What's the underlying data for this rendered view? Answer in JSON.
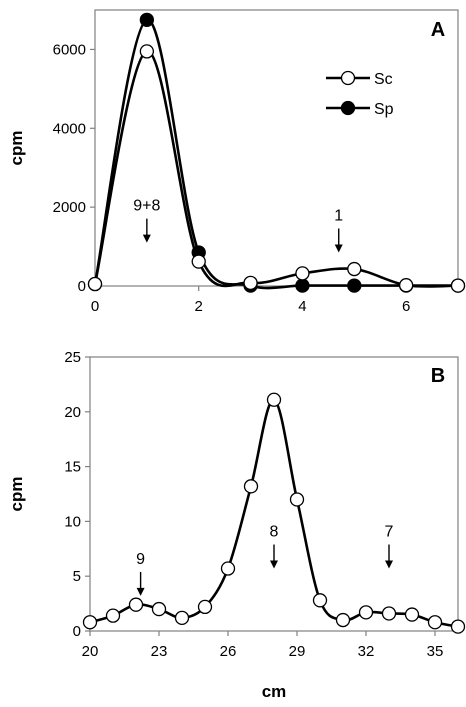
{
  "chart_data": [
    {
      "type": "line",
      "panel_label": "A",
      "ylabel": "cpm",
      "xlabel": "",
      "xlim": [
        0,
        7
      ],
      "ylim": [
        0,
        7000
      ],
      "x_ticks": [
        "0",
        "2",
        "4",
        "6"
      ],
      "y_ticks": [
        "0",
        "2000",
        "4000",
        "6000"
      ],
      "x": [
        0,
        1,
        2,
        3,
        4,
        5,
        6,
        7
      ],
      "series": [
        {
          "name": "Sc",
          "marker": "open-circle",
          "values": [
            50,
            5950,
            620,
            80,
            320,
            430,
            20,
            10
          ]
        },
        {
          "name": "Sp",
          "marker": "filled-circle",
          "values": [
            50,
            6750,
            850,
            10,
            10,
            10,
            10,
            10
          ]
        }
      ],
      "legend_position": "top-right",
      "annotations": [
        {
          "text": "9+8",
          "x": 1,
          "arrow_tip_y": 1100
        },
        {
          "text": "1",
          "x": 4.7,
          "arrow_tip_y": 850
        }
      ]
    },
    {
      "type": "line",
      "panel_label": "B",
      "ylabel": "cpm",
      "xlabel": "cm",
      "xlim": [
        20,
        36
      ],
      "ylim": [
        0,
        25
      ],
      "x_ticks": [
        "20",
        "23",
        "26",
        "29",
        "32",
        "35"
      ],
      "y_ticks": [
        "0",
        "5",
        "10",
        "15",
        "20",
        "25"
      ],
      "x": [
        20,
        21,
        22,
        23,
        24,
        25,
        26,
        27,
        28,
        29,
        30,
        31,
        32,
        33,
        34,
        35,
        36
      ],
      "series": [
        {
          "marker": "open-circle",
          "values": [
            0.8,
            1.4,
            2.4,
            2.0,
            1.2,
            2.2,
            5.7,
            13.2,
            21.1,
            12.0,
            2.8,
            1.0,
            1.7,
            1.6,
            1.5,
            0.8,
            0.4
          ]
        }
      ],
      "annotations": [
        {
          "text": "9",
          "x": 22.2,
          "arrow_tip_y": 3.2
        },
        {
          "text": "8",
          "x": 28,
          "arrow_tip_y": 5.7
        },
        {
          "text": "7",
          "x": 33,
          "arrow_tip_y": 5.7
        }
      ]
    }
  ]
}
